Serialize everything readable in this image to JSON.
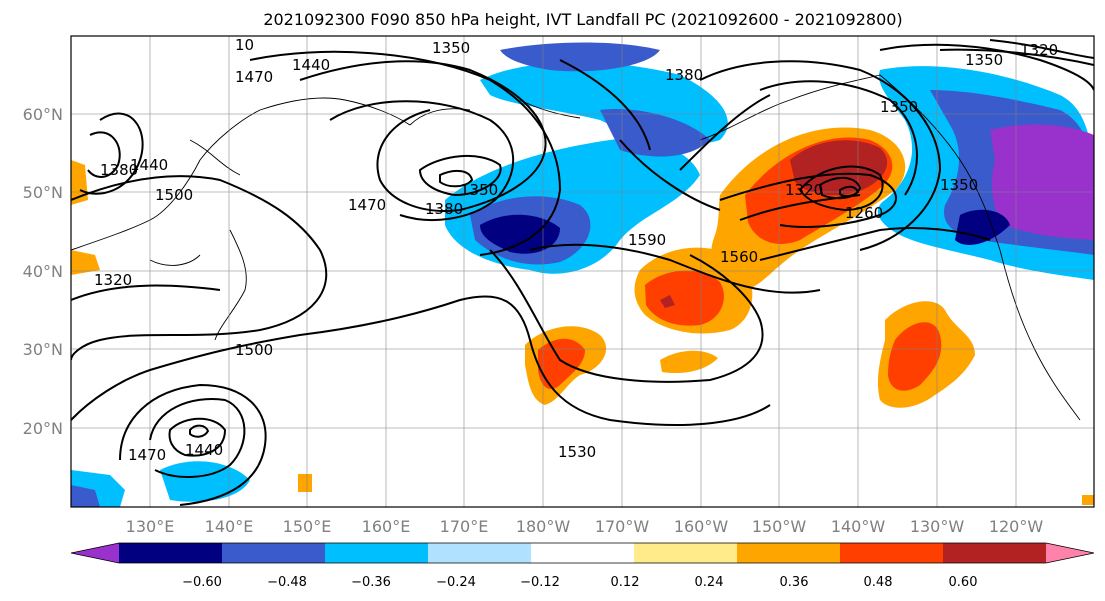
{
  "title": "2021092300 F090 850 hPa height, IVT Landfall PC (2021092600 - 2021092800)",
  "map": {
    "lon_labels": [
      "130°E",
      "140°E",
      "150°E",
      "160°E",
      "170°E",
      "180°W",
      "170°W",
      "160°W",
      "150°W",
      "140°W",
      "130°W",
      "120°W"
    ],
    "lat_labels": [
      "60°N",
      "50°N",
      "40°N",
      "30°N",
      "20°N"
    ],
    "contour_labels": [
      "1350",
      "1320",
      "1440",
      "1470",
      "1380",
      "1350",
      "1350",
      "1380",
      "1590",
      "1560",
      "1320",
      "1260",
      "1470",
      "1500",
      "1500",
      "1530",
      "1470",
      "1440",
      "1440",
      "1380",
      "1320",
      "1350",
      "1350",
      "10"
    ],
    "colors": {
      "contour": "#000000",
      "grid": "#808080",
      "coast": "#000000"
    }
  },
  "colorbar": {
    "tick_labels": [
      "−0.60",
      "−0.48",
      "−0.36",
      "−0.24",
      "−0.12",
      "0.12",
      "0.24",
      "0.36",
      "0.48",
      "0.60"
    ],
    "colors": [
      "#9932cc",
      "#000080",
      "#3a5bcb",
      "#00bfff",
      "#b0e2ff",
      "#ffffff",
      "#ffeb8a",
      "#ffa500",
      "#ff3f00",
      "#b22222",
      "#ff82ab"
    ]
  }
}
